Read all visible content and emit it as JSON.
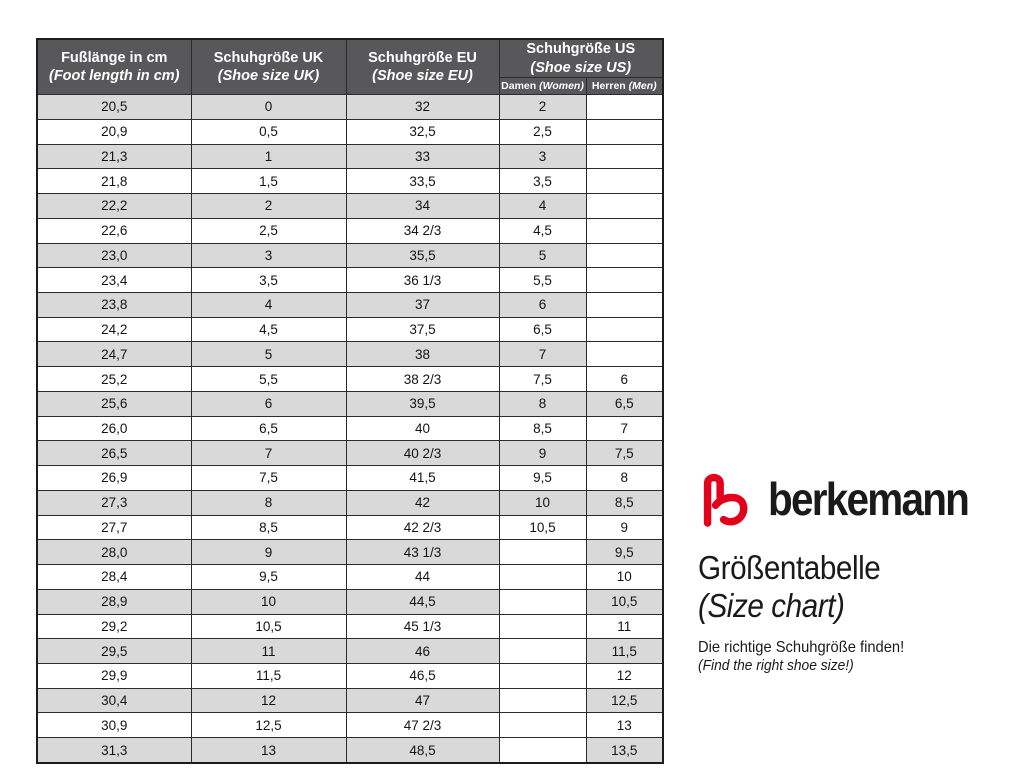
{
  "colors": {
    "header_bg": "#58585a",
    "stripe_row_bg": "#d9d9d9",
    "plain_row_bg": "#ffffff",
    "grid_border": "#2b2b2b",
    "logo_red": "#e2001a",
    "text": "#1a1a1a",
    "header_text": "#ffffff"
  },
  "branding": {
    "brand_name": "berkemann",
    "title_de": "Größentabelle",
    "title_en": "(Size chart)",
    "tagline_de": "Die richtige Schuhgröße finden!",
    "tagline_en": "(Find the right shoe size!)"
  },
  "chart_data": {
    "type": "table",
    "title": "Größentabelle (Size chart)",
    "columns": [
      {
        "de": "Fußlänge in cm",
        "en": "(Foot length in cm)"
      },
      {
        "de": "Schuhgröße UK",
        "en": "(Shoe size UK)"
      },
      {
        "de": "Schuhgröße EU",
        "en": "(Shoe size EU)"
      },
      {
        "de": "Schuhgröße US",
        "en": "(Shoe size US)"
      }
    ],
    "us_subcolumns": [
      {
        "de": "Damen",
        "en": "(Women)"
      },
      {
        "de": "Herren",
        "en": "(Men)"
      }
    ],
    "rows": [
      [
        "20,5",
        "0",
        "32",
        "2",
        ""
      ],
      [
        "20,9",
        "0,5",
        "32,5",
        "2,5",
        ""
      ],
      [
        "21,3",
        "1",
        "33",
        "3",
        ""
      ],
      [
        "21,8",
        "1,5",
        "33,5",
        "3,5",
        ""
      ],
      [
        "22,2",
        "2",
        "34",
        "4",
        ""
      ],
      [
        "22,6",
        "2,5",
        "34 2/3",
        "4,5",
        ""
      ],
      [
        "23,0",
        "3",
        "35,5",
        "5",
        ""
      ],
      [
        "23,4",
        "3,5",
        "36 1/3",
        "5,5",
        ""
      ],
      [
        "23,8",
        "4",
        "37",
        "6",
        ""
      ],
      [
        "24,2",
        "4,5",
        "37,5",
        "6,5",
        ""
      ],
      [
        "24,7",
        "5",
        "38",
        "7",
        ""
      ],
      [
        "25,2",
        "5,5",
        "38 2/3",
        "7,5",
        "6"
      ],
      [
        "25,6",
        "6",
        "39,5",
        "8",
        "6,5"
      ],
      [
        "26,0",
        "6,5",
        "40",
        "8,5",
        "7"
      ],
      [
        "26,5",
        "7",
        "40 2/3",
        "9",
        "7,5"
      ],
      [
        "26,9",
        "7,5",
        "41,5",
        "9,5",
        "8"
      ],
      [
        "27,3",
        "8",
        "42",
        "10",
        "8,5"
      ],
      [
        "27,7",
        "8,5",
        "42 2/3",
        "10,5",
        "9"
      ],
      [
        "28,0",
        "9",
        "43 1/3",
        "",
        "9,5"
      ],
      [
        "28,4",
        "9,5",
        "44",
        "",
        "10"
      ],
      [
        "28,9",
        "10",
        "44,5",
        "",
        "10,5"
      ],
      [
        "29,2",
        "10,5",
        "45 1/3",
        "",
        "11"
      ],
      [
        "29,5",
        "11",
        "46",
        "",
        "11,5"
      ],
      [
        "29,9",
        "11,5",
        "46,5",
        "",
        "12"
      ],
      [
        "30,4",
        "12",
        "47",
        "",
        "12,5"
      ],
      [
        "30,9",
        "12,5",
        "47 2/3",
        "",
        "13"
      ],
      [
        "31,3",
        "13",
        "48,5",
        "",
        "13,5"
      ]
    ]
  }
}
